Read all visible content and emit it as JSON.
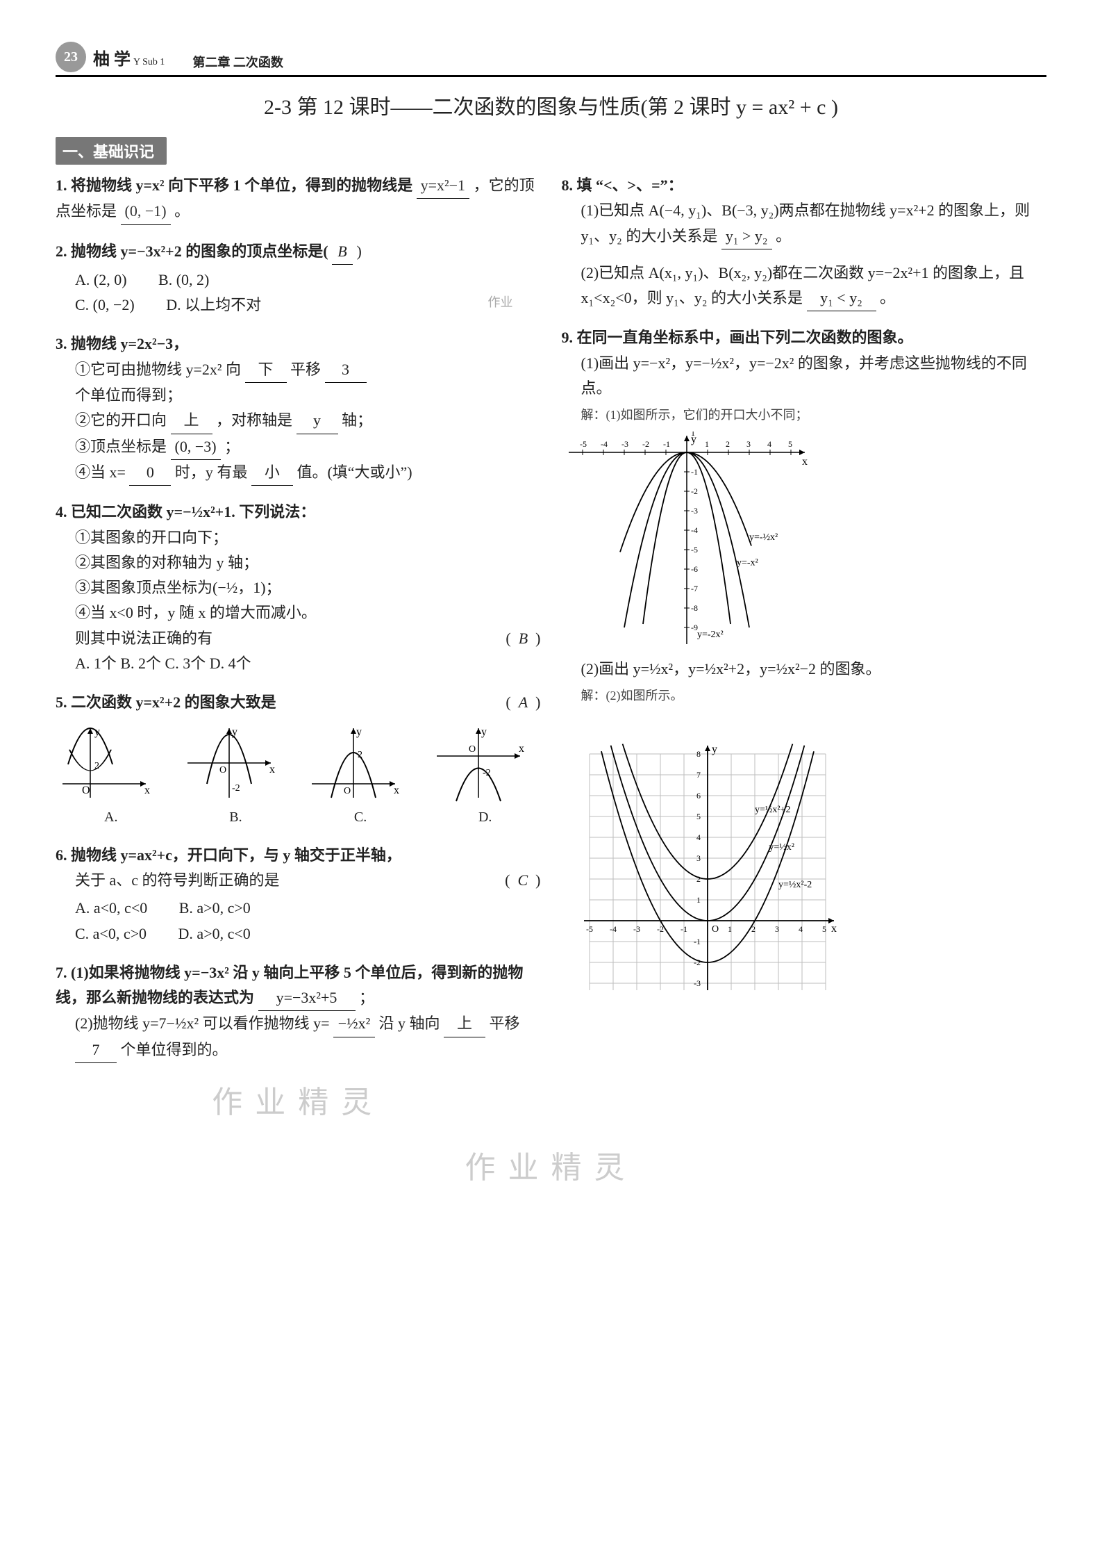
{
  "header": {
    "page_number": "23",
    "logo_main": "柚 学",
    "logo_sub": "Y Sub 1",
    "chapter": "第二章 二次函数"
  },
  "lesson_title": "2-3  第 12 课时——二次函数的图象与性质(第 2 课时  y = ax² + c )",
  "section1_label": "一、基础识记",
  "q1": {
    "text_a": "1. 将抛物线 y=x² 向下平移 1 个单位，得到的抛物线是",
    "blank1": "y=x²−1",
    "text_b": "，它的顶点坐标是",
    "blank2": "(0, −1)",
    "text_c": "。"
  },
  "q2": {
    "text": "2. 抛物线 y=−3x²+2 的图象的顶点坐标是(",
    "answer": "B",
    "text_end": ")",
    "optA": "A. (2, 0)",
    "optB": "B. (0, 2)",
    "optC": "C. (0, −2)",
    "optD": "D. 以上均不对",
    "side_note": "作业"
  },
  "q3": {
    "head": "3. 抛物线 y=2x²−3，",
    "line1a": "①它可由抛物线 y=2x² 向",
    "blank1": "下",
    "line1b": "平移",
    "blank2": "3",
    "line1c": "个单位而得到；",
    "line2a": "②它的开口向",
    "blank3": "上",
    "line2b": "，对称轴是",
    "blank4": "y",
    "line2c": "轴；",
    "line3a": "③顶点坐标是",
    "blank5": "(0, −3)",
    "line3b": "；",
    "line4a": "④当 x=",
    "blank6": "0",
    "line4b": "时，y 有最",
    "blank7": "小",
    "line4c": "值。(填“大或小”)"
  },
  "q4": {
    "head": "4. 已知二次函数 y=−½x²+1. 下列说法：",
    "s1": "①其图象的开口向下；",
    "s2": "②其图象的对称轴为 y 轴；",
    "s3": "③其图象顶点坐标为(−½，1)；",
    "s4": "④当 x<0 时，y 随 x 的增大而减小。",
    "tail_a": "则其中说法正确的有",
    "answer": "B",
    "opts": "A. 1个 B. 2个 C. 3个 D. 4个"
  },
  "q5": {
    "text": "5. 二次函数 y=x²+2 的图象大致是",
    "answer": "A",
    "labels": [
      "A.",
      "B.",
      "C.",
      "D."
    ]
  },
  "q6": {
    "line1": "6. 抛物线 y=ax²+c，开口向下，与 y 轴交于正半轴，",
    "line2": "关于 a、c 的符号判断正确的是",
    "answer": "C",
    "optA": "A. a<0, c<0",
    "optB": "B. a>0, c>0",
    "optC": "C. a<0, c>0",
    "optD": "D. a>0, c<0"
  },
  "q7": {
    "p1a": "7. (1)如果将抛物线 y=−3x² 沿 y 轴向上平移 5 个单位后，得到新的抛物线，那么新抛物线的表达式为",
    "blank1": "y=−3x²+5",
    "p1b": "；",
    "p2a": "(2)抛物线 y=7−½x² 可以看作抛物线 y=",
    "blank2": "−½x²",
    "p2b": "沿 y 轴向",
    "blank3": "上",
    "p2c": "平移",
    "blank4": "7",
    "p2d": "个单位得到的。"
  },
  "q8": {
    "head": "8. 填 “<、>、=”：",
    "p1a": "(1)已知点 A(−4, y₁)、B(−3, y₂)两点都在抛物线 y=x²+2 的图象上，则 y₁、y₂ 的大小关系是",
    "blank1": "y₁ > y₂",
    "p1b": "。",
    "p2a": "(2)已知点 A(x₁, y₁)、B(x₂, y₂)都在二次函数 y=−2x²+1 的图象上，且 x₁<x₂<0，则 y₁、y₂ 的大小关系是",
    "blank2": "y₁ < y₂",
    "p2b": "。"
  },
  "q9": {
    "head": "9. 在同一直角坐标系中，画出下列二次函数的图象。",
    "p1": "(1)画出 y=−x²，y=−½x²，y=−2x² 的图象，并考虑这些抛物线的不同点。",
    "ans1": "解：(1)如图所示，它们的开口大小不同；",
    "p2": "(2)画出 y=½x²，y=½x²+2，y=½x²−2 的图象。",
    "ans2": "解：(2)如图所示。"
  },
  "watermarks": {
    "w1": "作业精灵",
    "w2": "作业精灵"
  },
  "charts": {
    "q5_options": {
      "type": "small-parabola-set",
      "stroke": "#000",
      "axis_color": "#000",
      "size": 140
    },
    "q9_graph1": {
      "type": "three-down-parabolas",
      "x_range": [
        -5,
        5
      ],
      "y_range": [
        -9,
        1
      ],
      "axis_color": "#000",
      "grid_color": "#e0e0e0",
      "curves": [
        {
          "label": "y=−x²",
          "a": -1,
          "color": "#000"
        },
        {
          "label": "y=−½x²",
          "a": -0.5,
          "color": "#000"
        },
        {
          "label": "y=−2x²",
          "a": -2,
          "color": "#000"
        }
      ],
      "label_fontsize": 14
    },
    "q9_graph2": {
      "type": "three-up-parabolas-shifted",
      "x_range": [
        -5,
        5
      ],
      "y_range": [
        -4,
        8
      ],
      "axis_color": "#000",
      "grid_color": "#bdbdbd",
      "curves": [
        {
          "label": "y=½x²+2",
          "a": 0.5,
          "c": 2,
          "color": "#000"
        },
        {
          "label": "y=½x²",
          "a": 0.5,
          "c": 0,
          "color": "#000"
        },
        {
          "label": "y=½x²−2",
          "a": 0.5,
          "c": -2,
          "color": "#000"
        }
      ],
      "label_fontsize": 14
    }
  }
}
